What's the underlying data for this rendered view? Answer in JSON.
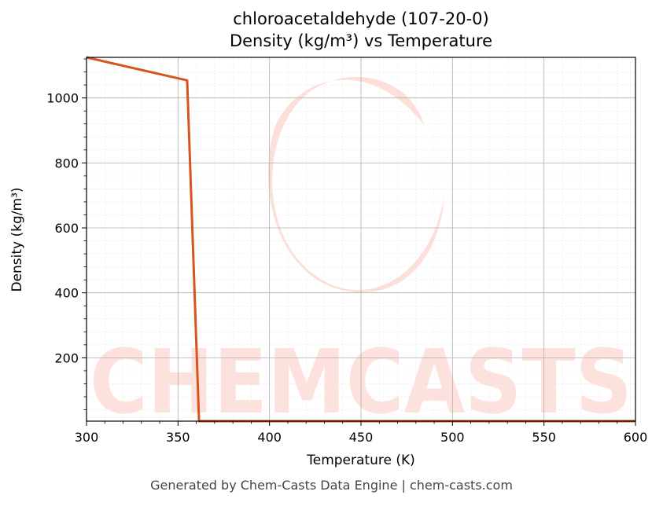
{
  "chart_data": {
    "type": "line",
    "title_line1": "chloroacetaldehyde (107-20-0)",
    "title_line2": "Density (kg/m³) vs Temperature",
    "xlabel": "Temperature (K)",
    "ylabel": "Density (kg/m³)",
    "xlim": [
      300,
      600
    ],
    "ylim": [
      5,
      1125
    ],
    "x_ticks": [
      300,
      350,
      400,
      450,
      500,
      550,
      600
    ],
    "y_ticks": [
      200,
      400,
      600,
      800,
      1000
    ],
    "grid": true,
    "minor_grid": true,
    "series": [
      {
        "color": "#d9531e",
        "x": [
          300,
          355,
          361.5,
          361.8,
          600
        ],
        "y": [
          1125,
          1054,
          5,
          5,
          5
        ]
      }
    ]
  },
  "watermark": {
    "text": "CHEMCASTS",
    "color": "#fddcd6"
  },
  "footer": "Generated by Chem-Casts Data Engine | chem-casts.com"
}
